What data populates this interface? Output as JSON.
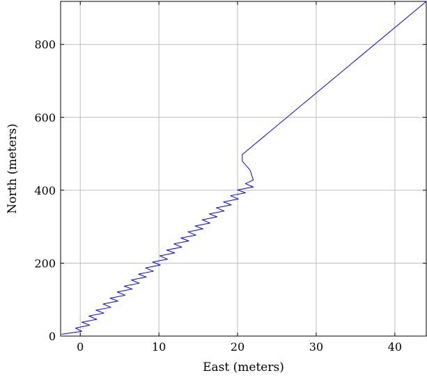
{
  "chart_data": {
    "type": "line",
    "title": "",
    "xlabel": "East (meters)",
    "ylabel": "North (meters)",
    "xlim": [
      -2.5,
      44
    ],
    "ylim": [
      0,
      918
    ],
    "grid": true,
    "x_ticks": [
      0,
      10,
      20,
      30,
      40
    ],
    "x_tick_labels": [
      "0",
      "10",
      "20",
      "30",
      "40"
    ],
    "y_ticks": [
      0,
      200,
      400,
      600,
      800
    ],
    "y_tick_labels": [
      "0",
      "200",
      "400",
      "600",
      "800"
    ],
    "series": [
      {
        "color": "#0000ff",
        "x": [
          -2.4,
          0.2,
          -0.6,
          1.2,
          0.2,
          2.1,
          1.1,
          3.0,
          2.0,
          3.9,
          2.9,
          4.8,
          3.8,
          5.7,
          4.7,
          6.6,
          5.6,
          7.5,
          6.5,
          8.4,
          7.4,
          9.3,
          8.3,
          10.2,
          9.2,
          11.1,
          10.1,
          12.0,
          11.0,
          12.9,
          11.9,
          13.8,
          12.8,
          14.7,
          13.7,
          15.6,
          14.6,
          16.5,
          15.5,
          17.4,
          16.4,
          18.3,
          17.3,
          19.2,
          18.2,
          20.1,
          19.1,
          21.0,
          20.0,
          22.0,
          21.0,
          22.0,
          21.6,
          20.6,
          20.6,
          44.0
        ],
        "y": [
          5,
          13,
          22,
          30,
          38,
          46,
          55,
          63,
          71,
          79,
          88,
          96,
          104,
          112,
          121,
          129,
          137,
          145,
          154,
          162,
          170,
          178,
          187,
          195,
          203,
          211,
          220,
          228,
          236,
          244,
          253,
          261,
          269,
          277,
          286,
          294,
          302,
          310,
          319,
          327,
          335,
          343,
          352,
          360,
          368,
          376,
          385,
          393,
          401,
          409,
          418,
          428,
          455,
          480,
          498,
          918
        ]
      }
    ]
  }
}
